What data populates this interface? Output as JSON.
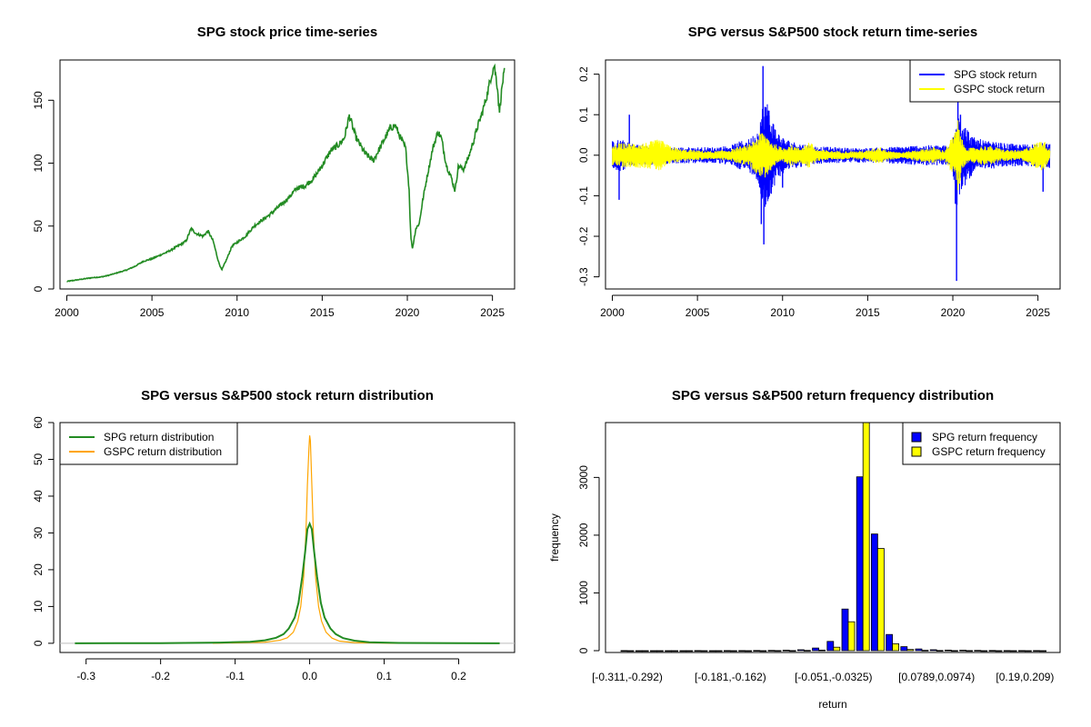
{
  "chart_data": [
    {
      "id": "price",
      "type": "line",
      "title": "SPG stock price time-series",
      "xlabel": "",
      "ylabel": "",
      "xlim": [
        1999.6,
        2026.3
      ],
      "ylim": [
        0,
        182
      ],
      "x_ticks": [
        2000,
        2005,
        2010,
        2015,
        2020,
        2025
      ],
      "x_tick_labels": [
        "2000",
        "2005",
        "2010",
        "2015",
        "2020",
        "2025"
      ],
      "y_ticks": [
        0,
        50,
        100,
        150
      ],
      "y_tick_labels": [
        "0",
        "50",
        "100",
        "150"
      ],
      "grid": false,
      "series": [
        {
          "color": "#228B22",
          "points": [
            [
              2000.0,
              6
            ],
            [
              2000.5,
              7
            ],
            [
              2001.0,
              8
            ],
            [
              2001.5,
              9
            ],
            [
              2002.0,
              9.5
            ],
            [
              2002.5,
              11
            ],
            [
              2003.0,
              13
            ],
            [
              2003.5,
              15
            ],
            [
              2004.0,
              18
            ],
            [
              2004.5,
              22
            ],
            [
              2005.0,
              24
            ],
            [
              2005.5,
              27
            ],
            [
              2006.0,
              30
            ],
            [
              2006.5,
              34
            ],
            [
              2007.0,
              38
            ],
            [
              2007.3,
              48
            ],
            [
              2007.6,
              44
            ],
            [
              2008.0,
              42
            ],
            [
              2008.3,
              46
            ],
            [
              2008.6,
              38
            ],
            [
              2008.9,
              22
            ],
            [
              2009.1,
              15
            ],
            [
              2009.4,
              24
            ],
            [
              2009.7,
              34
            ],
            [
              2010.0,
              37
            ],
            [
              2010.5,
              42
            ],
            [
              2011.0,
              50
            ],
            [
              2011.5,
              55
            ],
            [
              2012.0,
              60
            ],
            [
              2012.5,
              66
            ],
            [
              2013.0,
              72
            ],
            [
              2013.5,
              80
            ],
            [
              2014.0,
              82
            ],
            [
              2014.5,
              88
            ],
            [
              2015.0,
              98
            ],
            [
              2015.5,
              110
            ],
            [
              2016.0,
              115
            ],
            [
              2016.3,
              120
            ],
            [
              2016.6,
              138
            ],
            [
              2016.8,
              128
            ],
            [
              2017.0,
              120
            ],
            [
              2017.5,
              108
            ],
            [
              2018.0,
              102
            ],
            [
              2018.5,
              115
            ],
            [
              2019.0,
              128
            ],
            [
              2019.3,
              130
            ],
            [
              2019.6,
              120
            ],
            [
              2019.9,
              112
            ],
            [
              2020.1,
              80
            ],
            [
              2020.2,
              42
            ],
            [
              2020.3,
              32
            ],
            [
              2020.5,
              48
            ],
            [
              2020.7,
              52
            ],
            [
              2020.9,
              70
            ],
            [
              2021.1,
              85
            ],
            [
              2021.5,
              112
            ],
            [
              2021.8,
              125
            ],
            [
              2022.0,
              120
            ],
            [
              2022.3,
              98
            ],
            [
              2022.6,
              88
            ],
            [
              2022.8,
              78
            ],
            [
              2023.0,
              98
            ],
            [
              2023.3,
              95
            ],
            [
              2023.6,
              105
            ],
            [
              2023.9,
              118
            ],
            [
              2024.1,
              128
            ],
            [
              2024.4,
              140
            ],
            [
              2024.7,
              155
            ],
            [
              2024.9,
              168
            ],
            [
              2025.1,
              178
            ],
            [
              2025.3,
              160
            ],
            [
              2025.4,
              140
            ],
            [
              2025.6,
              165
            ],
            [
              2025.7,
              172
            ]
          ]
        }
      ]
    },
    {
      "id": "returns",
      "type": "line",
      "title": "SPG versus S&P500 stock return time-series",
      "xlabel": "",
      "ylabel": "",
      "xlim": [
        1999.6,
        2026.3
      ],
      "ylim": [
        -0.33,
        0.235
      ],
      "x_ticks": [
        2000,
        2005,
        2010,
        2015,
        2020,
        2025
      ],
      "x_tick_labels": [
        "2000",
        "2005",
        "2010",
        "2015",
        "2020",
        "2025"
      ],
      "y_ticks": [
        -0.3,
        -0.2,
        -0.1,
        0.0,
        0.1,
        0.2
      ],
      "y_tick_labels": [
        "-0.3",
        "-0.2",
        "-0.1",
        "0.0",
        "0.1",
        "0.2"
      ],
      "grid": false,
      "legend": {
        "position": "top-right"
      },
      "series": [
        {
          "name": "SPG stock return",
          "color": "#0000FF",
          "band": [
            [
              2000.0,
              0.035
            ],
            [
              2000.5,
              0.04
            ],
            [
              2001.0,
              0.03
            ],
            [
              2002.0,
              0.025
            ],
            [
              2003.0,
              0.022
            ],
            [
              2004.0,
              0.02
            ],
            [
              2005.0,
              0.02
            ],
            [
              2006.0,
              0.02
            ],
            [
              2007.0,
              0.025
            ],
            [
              2007.5,
              0.035
            ],
            [
              2008.0,
              0.04
            ],
            [
              2008.5,
              0.06
            ],
            [
              2008.8,
              0.12
            ],
            [
              2009.0,
              0.15
            ],
            [
              2009.3,
              0.1
            ],
            [
              2009.7,
              0.06
            ],
            [
              2010.0,
              0.045
            ],
            [
              2010.5,
              0.035
            ],
            [
              2011.0,
              0.03
            ],
            [
              2012.0,
              0.022
            ],
            [
              2013.0,
              0.02
            ],
            [
              2014.0,
              0.018
            ],
            [
              2015.0,
              0.018
            ],
            [
              2016.0,
              0.02
            ],
            [
              2017.0,
              0.022
            ],
            [
              2018.0,
              0.025
            ],
            [
              2019.0,
              0.025
            ],
            [
              2019.9,
              0.025
            ],
            [
              2020.1,
              0.08
            ],
            [
              2020.25,
              0.13
            ],
            [
              2020.5,
              0.09
            ],
            [
              2020.8,
              0.07
            ],
            [
              2021.2,
              0.045
            ],
            [
              2022.0,
              0.035
            ],
            [
              2023.0,
              0.03
            ],
            [
              2024.0,
              0.027
            ],
            [
              2025.0,
              0.03
            ],
            [
              2025.7,
              0.032
            ]
          ],
          "spikes": [
            [
              2000.4,
              -0.11
            ],
            [
              2001.0,
              0.1
            ],
            [
              2008.85,
              0.22
            ],
            [
              2008.75,
              -0.17
            ],
            [
              2008.9,
              -0.22
            ],
            [
              2009.2,
              0.11
            ],
            [
              2010.0,
              -0.08
            ],
            [
              2020.22,
              -0.31
            ],
            [
              2020.3,
              0.17
            ],
            [
              2020.45,
              0.1
            ],
            [
              2020.15,
              -0.12
            ],
            [
              2025.3,
              -0.09
            ]
          ]
        },
        {
          "name": "GSPC stock return",
          "color": "#FFFF00",
          "band": [
            [
              2000.0,
              0.025
            ],
            [
              2000.5,
              0.03
            ],
            [
              2001.0,
              0.03
            ],
            [
              2002.0,
              0.032
            ],
            [
              2002.8,
              0.04
            ],
            [
              2003.3,
              0.025
            ],
            [
              2004.0,
              0.015
            ],
            [
              2005.0,
              0.012
            ],
            [
              2006.0,
              0.01
            ],
            [
              2007.0,
              0.015
            ],
            [
              2007.5,
              0.022
            ],
            [
              2008.0,
              0.025
            ],
            [
              2008.8,
              0.06
            ],
            [
              2009.0,
              0.055
            ],
            [
              2009.5,
              0.03
            ],
            [
              2010.0,
              0.018
            ],
            [
              2010.4,
              0.028
            ],
            [
              2011.0,
              0.018
            ],
            [
              2011.6,
              0.035
            ],
            [
              2012.0,
              0.015
            ],
            [
              2013.0,
              0.011
            ],
            [
              2014.0,
              0.01
            ],
            [
              2015.0,
              0.012
            ],
            [
              2015.7,
              0.022
            ],
            [
              2016.0,
              0.015
            ],
            [
              2017.0,
              0.007
            ],
            [
              2018.0,
              0.015
            ],
            [
              2018.9,
              0.02
            ],
            [
              2019.5,
              0.012
            ],
            [
              2020.15,
              0.06
            ],
            [
              2020.3,
              0.09
            ],
            [
              2020.6,
              0.03
            ],
            [
              2021.0,
              0.018
            ],
            [
              2022.0,
              0.025
            ],
            [
              2023.0,
              0.015
            ],
            [
              2024.0,
              0.012
            ],
            [
              2025.3,
              0.04
            ],
            [
              2025.7,
              0.015
            ]
          ],
          "spikes": []
        }
      ]
    },
    {
      "id": "density",
      "type": "line",
      "title": "SPG versus S&P500 stock return distribution",
      "xlabel": "",
      "ylabel": "",
      "xlim": [
        -0.335,
        0.275
      ],
      "ylim": [
        -2.5,
        60
      ],
      "x_ticks": [
        -0.3,
        -0.2,
        -0.1,
        0.0,
        0.1,
        0.2
      ],
      "x_tick_labels": [
        "-0.3",
        "-0.2",
        "-0.1",
        "0.0",
        "0.1",
        "0.2"
      ],
      "y_ticks": [
        0,
        10,
        20,
        30,
        40,
        50,
        60
      ],
      "y_tick_labels": [
        "0",
        "10",
        "20",
        "30",
        "40",
        "50",
        "60"
      ],
      "grid": false,
      "legend": {
        "position": "top-left"
      },
      "series": [
        {
          "name": "SPG return distribution",
          "color": "#228B22",
          "points": [
            [
              -0.315,
              0
            ],
            [
              -0.2,
              0.05
            ],
            [
              -0.12,
              0.2
            ],
            [
              -0.08,
              0.4
            ],
            [
              -0.06,
              0.8
            ],
            [
              -0.045,
              1.5
            ],
            [
              -0.035,
              2.5
            ],
            [
              -0.028,
              4
            ],
            [
              -0.02,
              7
            ],
            [
              -0.015,
              11
            ],
            [
              -0.01,
              18
            ],
            [
              -0.006,
              25
            ],
            [
              -0.003,
              31
            ],
            [
              0.0,
              32.5
            ],
            [
              0.003,
              31
            ],
            [
              0.006,
              25
            ],
            [
              0.01,
              18
            ],
            [
              0.015,
              11
            ],
            [
              0.02,
              7
            ],
            [
              0.028,
              4
            ],
            [
              0.035,
              2.5
            ],
            [
              0.045,
              1.4
            ],
            [
              0.06,
              0.7
            ],
            [
              0.08,
              0.3
            ],
            [
              0.12,
              0.1
            ],
            [
              0.2,
              0.03
            ],
            [
              0.255,
              0
            ]
          ]
        },
        {
          "name": "GSPC return distribution",
          "color": "#FFA500",
          "points": [
            [
              -0.13,
              0
            ],
            [
              -0.06,
              0.3
            ],
            [
              -0.04,
              0.8
            ],
            [
              -0.03,
              1.5
            ],
            [
              -0.022,
              3
            ],
            [
              -0.016,
              6
            ],
            [
              -0.012,
              10
            ],
            [
              -0.008,
              18
            ],
            [
              -0.005,
              30
            ],
            [
              -0.003,
              43
            ],
            [
              -0.001,
              53
            ],
            [
              0.0,
              56.5
            ],
            [
              0.001,
              55
            ],
            [
              0.003,
              43
            ],
            [
              0.005,
              30
            ],
            [
              0.008,
              18
            ],
            [
              0.012,
              10
            ],
            [
              0.016,
              6
            ],
            [
              0.022,
              3
            ],
            [
              0.03,
              1.4
            ],
            [
              0.04,
              0.6
            ],
            [
              0.06,
              0.2
            ],
            [
              0.12,
              0
            ]
          ]
        }
      ]
    },
    {
      "id": "histogram",
      "type": "bar",
      "title": "SPG versus S&P500 return frequency distribution",
      "xlabel": "return",
      "ylabel": "frequency",
      "ylim": [
        0,
        3950
      ],
      "y_ticks": [
        0,
        1000,
        2000,
        3000
      ],
      "y_tick_labels": [
        "0",
        "1000",
        "2000",
        "3000"
      ],
      "x_tick_labels": [
        {
          "category": 0,
          "label": "[-0.311,-0.292)"
        },
        {
          "category": 7,
          "label": "[-0.181,-0.162)"
        },
        {
          "category": 14,
          "label": "[-0.051,-0.0325)"
        },
        {
          "category": 21,
          "label": "[0.0789,0.0974)"
        },
        {
          "category": 27,
          "label": "[0.19,0.209)"
        }
      ],
      "legend": {
        "position": "top-right"
      },
      "categories_count": 29,
      "series": [
        {
          "name": "SPG return frequency",
          "color": "#0000FF",
          "values": [
            1,
            0,
            0,
            0,
            0,
            1,
            0,
            1,
            2,
            3,
            5,
            8,
            15,
            45,
            160,
            720,
            3010,
            2020,
            280,
            70,
            30,
            15,
            10,
            8,
            5,
            3,
            2,
            2,
            1
          ]
        },
        {
          "name": "GSPC return frequency",
          "color": "#FFFF00",
          "values": [
            0,
            0,
            0,
            0,
            0,
            0,
            0,
            0,
            0,
            0,
            1,
            2,
            5,
            10,
            60,
            500,
            3950,
            1770,
            120,
            20,
            6,
            3,
            1,
            1,
            0,
            0,
            0,
            0,
            0
          ]
        }
      ]
    }
  ]
}
